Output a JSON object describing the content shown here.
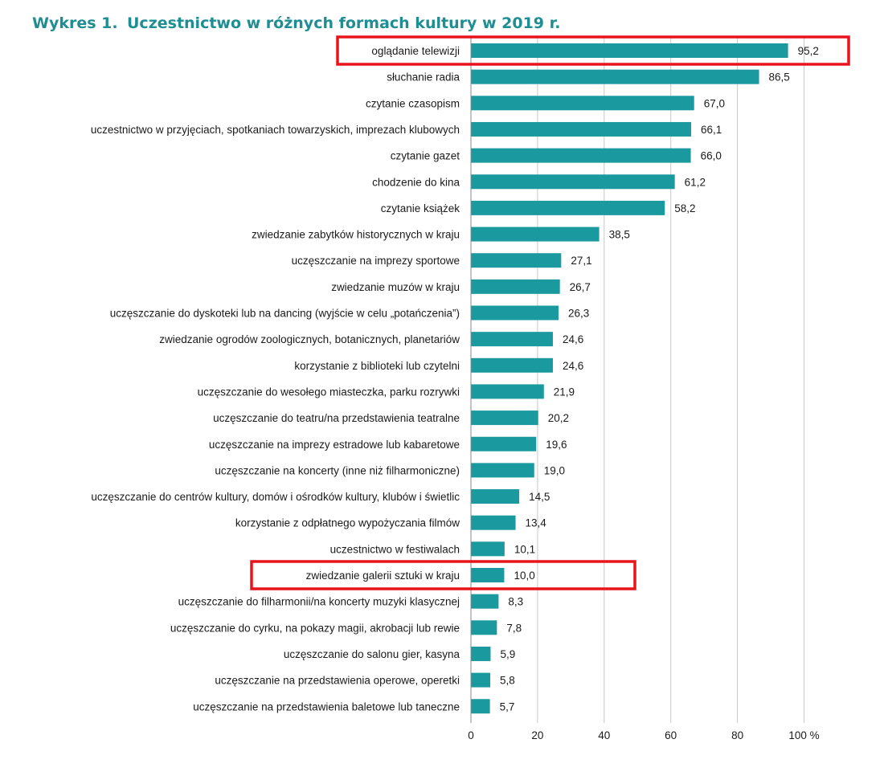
{
  "figure": {
    "label": "Wykres 1.",
    "title": "Uczestnictwo w różnych formach kultury w 2019 r."
  },
  "colors": {
    "bar": "#1a999e",
    "grid": "#c8c8c8",
    "axis": "#888888",
    "highlight": "#e8131b",
    "title": "#1e8e93"
  },
  "chart_data": {
    "type": "bar",
    "orientation": "horizontal",
    "title": "Uczestnictwo w różnych formach kultury w 2019 r.",
    "xlabel": "",
    "ylabel": "",
    "xlim": [
      0,
      100
    ],
    "x_ticks": [
      0,
      20,
      40,
      60,
      80,
      100
    ],
    "x_tick_labels": [
      "0",
      "20",
      "40",
      "60",
      "80",
      "100 %"
    ],
    "grid": true,
    "legend": "none",
    "categories": [
      "oglądanie telewizji",
      "słuchanie radia",
      "czytanie czasopism",
      "uczestnictwo w przyjęciach, spotkaniach towarzyskich, imprezach  klubowych",
      "czytanie gazet",
      "chodzenie do kina",
      "czytanie książek",
      "zwiedzanie zabytków historycznych w kraju",
      "uczęszczanie na imprezy sportowe",
      "zwiedzanie muzów w kraju",
      "uczęszczanie do dyskoteki lub na dancing (wyjście w celu „potańczenia”)",
      "zwiedzanie ogrodów zoologicznych, botanicznych, planetariów",
      "korzystanie z biblioteki lub czytelni",
      "uczęszczanie do wesołego miasteczka, parku rozrywki",
      "uczęszczanie do teatru/na przedstawienia teatralne",
      "uczęszczanie na imprezy estradowe lub kabaretowe",
      "uczęszczanie na koncerty (inne niż filharmoniczne)",
      "uczęszczanie do centrów kultury, domów i ośrodków kultury, klubów i świetlic",
      "korzystanie z odpłatnego wypożyczania filmów",
      "uczestnictwo w festiwalach",
      "zwiedzanie galerii sztuki w kraju",
      "uczęszczanie do filharmonii/na koncerty muzyki klasycznej",
      "uczęszczanie do cyrku, na pokazy magii, akrobacji lub rewie",
      "uczęszczanie do salonu gier, kasyna",
      "uczęszczanie na przedstawienia operowe, operetki",
      "uczęszczanie na przedstawienia baletowe lub taneczne"
    ],
    "values": [
      95.2,
      86.5,
      67.0,
      66.1,
      66.0,
      61.2,
      58.2,
      38.5,
      27.1,
      26.7,
      26.3,
      24.6,
      24.6,
      21.9,
      20.2,
      19.6,
      19.0,
      14.5,
      13.4,
      10.1,
      10.0,
      8.3,
      7.8,
      5.9,
      5.8,
      5.7
    ],
    "value_labels": [
      "95,2",
      "86,5",
      "67,0",
      "66,1",
      "66,0",
      "61,2",
      "58,2",
      "38,5",
      "27,1",
      "26,7",
      "26,3",
      "24,6",
      "24,6",
      "21,9",
      "20,2",
      "19,6",
      "19,0",
      "14,5",
      "13,4",
      "10,1",
      "10,0",
      "8,3",
      "7,8",
      "5,9",
      "5,8",
      "5,7"
    ],
    "highlighted_categories": [
      "oglądanie telewizji",
      "zwiedzanie galerii sztuki w kraju"
    ]
  }
}
